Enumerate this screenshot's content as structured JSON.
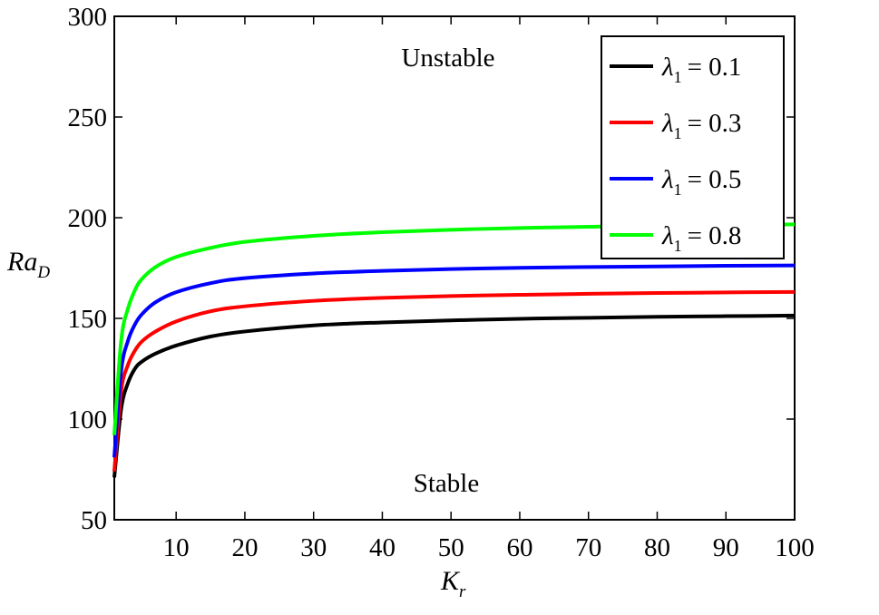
{
  "chart_data": {
    "type": "line",
    "title": "",
    "xlabel": {
      "main": "K",
      "sub": "r"
    },
    "ylabel": {
      "main": "Ra",
      "sub": "D"
    },
    "xlim": [
      1,
      100
    ],
    "ylim": [
      50,
      300
    ],
    "xticks": [
      10,
      20,
      30,
      40,
      50,
      60,
      70,
      80,
      90,
      100
    ],
    "yticks": [
      50,
      100,
      150,
      200,
      250,
      300
    ],
    "grid": false,
    "legend_position": "top-right",
    "annotations": [
      {
        "id": "unstable",
        "text": "Unstable"
      },
      {
        "id": "stable",
        "text": "Stable"
      }
    ],
    "x": [
      1,
      2,
      3,
      4,
      5,
      7,
      10,
      15,
      20,
      30,
      40,
      50,
      60,
      70,
      80,
      90,
      100
    ],
    "series": [
      {
        "legend_symbol": "λ",
        "legend_sub": "1",
        "legend_value": "= 0.1",
        "color": "#000000",
        "values": [
          71,
          105,
          118,
          125,
          128.5,
          132.5,
          136.5,
          141,
          143.5,
          146.5,
          148,
          149,
          149.8,
          150.3,
          150.8,
          151.1,
          151.4
        ]
      },
      {
        "legend_symbol": "λ",
        "legend_sub": "1",
        "legend_value": "= 0.3",
        "color": "#ff0000",
        "values": [
          74,
          114,
          127,
          134,
          138.5,
          143.5,
          148.5,
          153.5,
          156,
          158.7,
          160.2,
          161.1,
          161.7,
          162.2,
          162.6,
          162.9,
          163.1
        ]
      },
      {
        "legend_symbol": "λ",
        "legend_sub": "1",
        "legend_value": "= 0.5",
        "color": "#0000ff",
        "values": [
          81,
          124,
          139,
          147,
          152,
          158,
          163,
          167.5,
          170,
          172.3,
          173.6,
          174.5,
          175.1,
          175.5,
          175.8,
          176.1,
          176.3
        ]
      },
      {
        "legend_symbol": "λ",
        "legend_sub": "1",
        "legend_value": "= 0.8",
        "color": "#00ff00",
        "values": [
          92,
          139,
          155,
          164,
          169.5,
          175.5,
          180.5,
          185,
          188,
          191,
          192.8,
          194,
          194.9,
          195.5,
          196,
          196.4,
          196.7
        ]
      }
    ]
  }
}
